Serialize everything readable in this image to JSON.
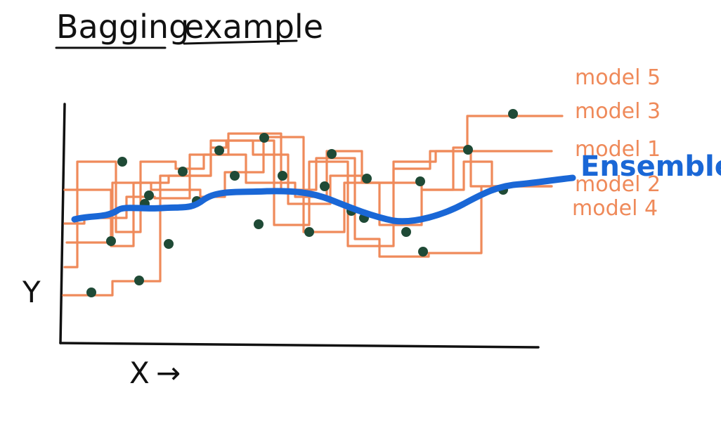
{
  "title": {
    "word1": "Bagging",
    "word2": "example"
  },
  "axes": {
    "x_label": "X",
    "x_arrow": "→",
    "y_label": "Y"
  },
  "legend": {
    "labels": [
      "model 5",
      "model 3",
      "model 1",
      "model 2",
      "model 4"
    ],
    "ensemble": "Ensemble"
  },
  "colors": {
    "ink": "#111111",
    "models": "#ef8a5a",
    "ensemble": "#1a67d6",
    "points": "#1f4a36"
  },
  "diagram": {
    "type": "ensemble-of-step-functions",
    "point_count": 26,
    "model_count": 5
  }
}
